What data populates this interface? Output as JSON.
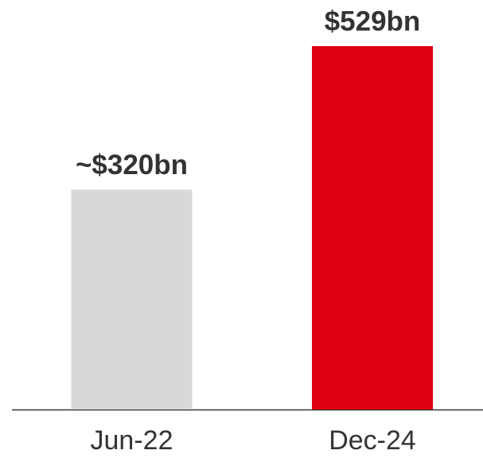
{
  "chart_data": {
    "type": "bar",
    "categories": [
      "Jun-22",
      "Dec-24"
    ],
    "values": [
      320,
      529
    ],
    "value_labels": [
      "~$320bn",
      "$529bn"
    ],
    "colors": [
      "#d9d8d6",
      "#e0000f"
    ]
  }
}
